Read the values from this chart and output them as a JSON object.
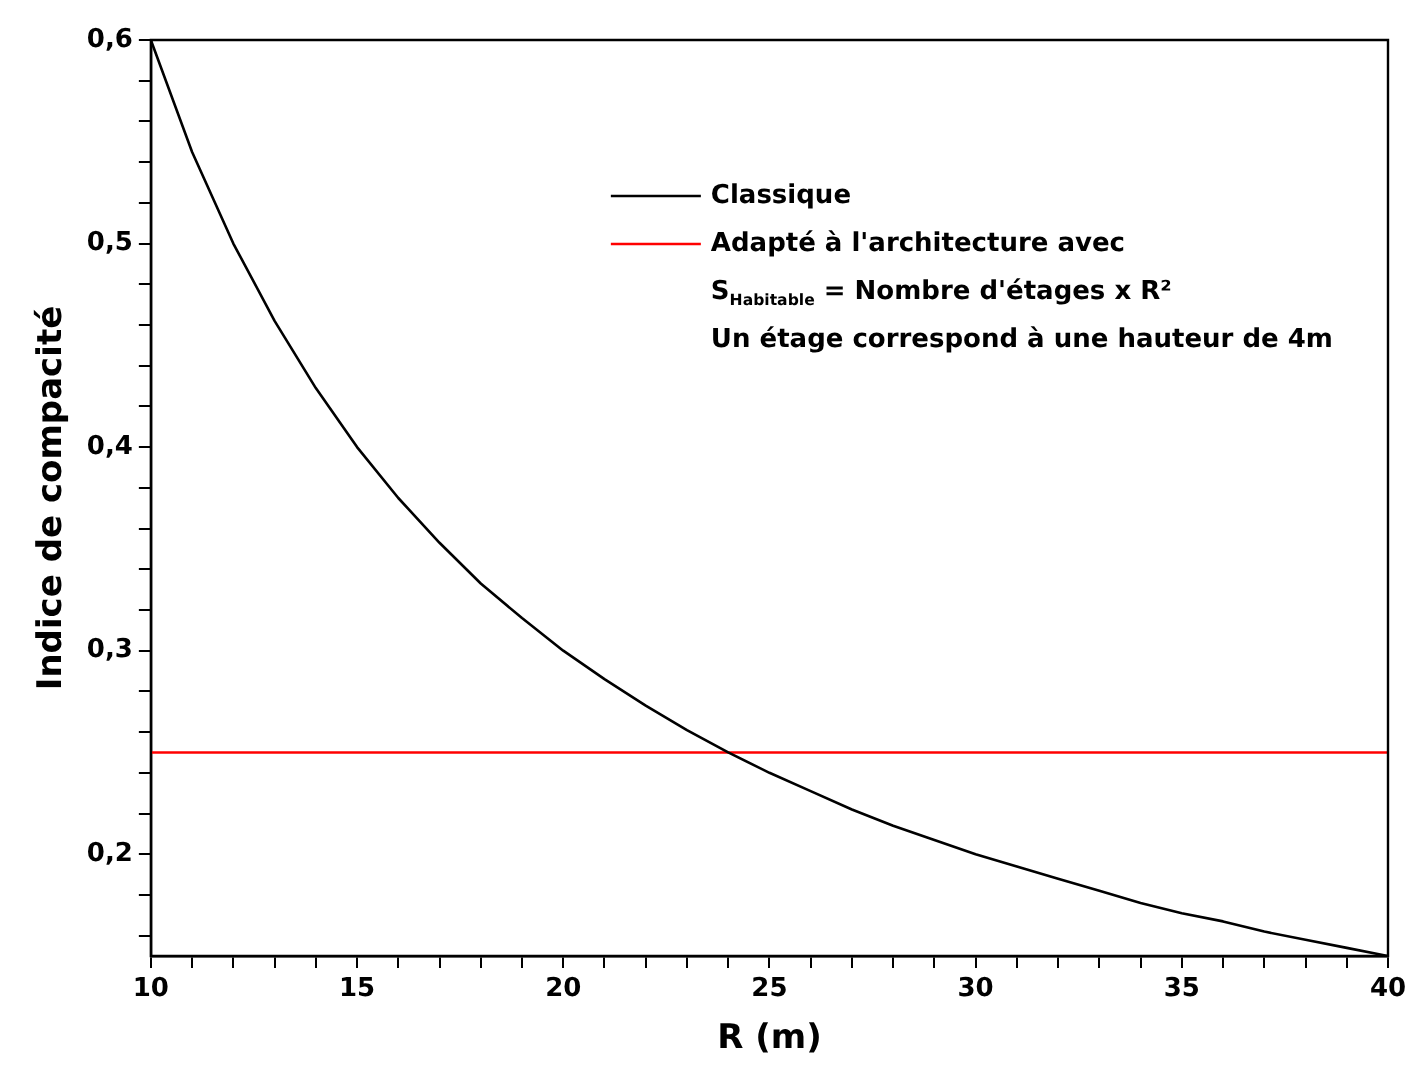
{
  "chart_data": {
    "type": "line",
    "xlabel": "R (m)",
    "ylabel": "Indice de compacité",
    "x": [
      10,
      11,
      12,
      13,
      14,
      15,
      16,
      17,
      18,
      19,
      20,
      21,
      22,
      23,
      24,
      25,
      26,
      27,
      28,
      29,
      30,
      31,
      32,
      33,
      34,
      35,
      36,
      37,
      38,
      39,
      40
    ],
    "series": [
      {
        "name": "Classique",
        "color": "#000000",
        "values": [
          0.6,
          0.545,
          0.5,
          0.462,
          0.429,
          0.4,
          0.375,
          0.353,
          0.333,
          0.316,
          0.3,
          0.286,
          0.273,
          0.261,
          0.25,
          0.24,
          0.231,
          0.222,
          0.214,
          0.207,
          0.2,
          0.194,
          0.188,
          0.182,
          0.176,
          0.171,
          0.167,
          0.162,
          0.158,
          0.154,
          0.15
        ]
      },
      {
        "name": "Adapté à l'architecture avec",
        "color": "#ff0000",
        "x": [
          10,
          40
        ],
        "values": [
          0.25,
          0.25
        ]
      }
    ],
    "annotations": [
      "S$_{Habitable}$ = Nombre d'étages x R²",
      "Un étage correspond à une hauteur de 4m"
    ],
    "xlim": [
      10,
      40
    ],
    "xticks": [
      10,
      {
        "value": 11,
        "label": null
      },
      {
        "value": 12,
        "label": null
      },
      {
        "value": 13,
        "label": null
      },
      {
        "value": 14,
        "label": null
      },
      15,
      {
        "value": 16,
        "label": null
      },
      {
        "value": 17,
        "label": null
      },
      {
        "value": 18,
        "label": null
      },
      {
        "value": 19,
        "label": null
      },
      20,
      {
        "value": 21,
        "label": null
      },
      {
        "value": 22,
        "label": null
      },
      {
        "value": 23,
        "label": null
      },
      {
        "value": 24,
        "label": null
      },
      25,
      {
        "value": 26,
        "label": null
      },
      {
        "value": 27,
        "label": null
      },
      {
        "value": 28,
        "label": null
      },
      {
        "value": 29,
        "label": null
      },
      30,
      {
        "value": 31,
        "label": null
      },
      {
        "value": 32,
        "label": null
      },
      {
        "value": 33,
        "label": null
      },
      {
        "value": 34,
        "label": null
      },
      35,
      {
        "value": 36,
        "label": null
      },
      {
        "value": 37,
        "label": null
      },
      {
        "value": 38,
        "label": null
      },
      {
        "value": 39,
        "label": null
      },
      40
    ],
    "ylim": [
      0.15,
      0.6
    ],
    "yticks": [
      {
        "value": 0.16,
        "label": null
      },
      {
        "value": 0.18,
        "label": null
      },
      {
        "value": 0.2,
        "label": "0,2"
      },
      {
        "value": 0.22,
        "label": null
      },
      {
        "value": 0.24,
        "label": null
      },
      {
        "value": 0.26,
        "label": null
      },
      {
        "value": 0.28,
        "label": null
      },
      {
        "value": 0.3,
        "label": "0,3"
      },
      {
        "value": 0.32,
        "label": null
      },
      {
        "value": 0.34,
        "label": null
      },
      {
        "value": 0.36,
        "label": null
      },
      {
        "value": 0.38,
        "label": null
      },
      {
        "value": 0.4,
        "label": "0,4"
      },
      {
        "value": 0.42,
        "label": null
      },
      {
        "value": 0.44,
        "label": null
      },
      {
        "value": 0.46,
        "label": null
      },
      {
        "value": 0.48,
        "label": null
      },
      {
        "value": 0.5,
        "label": "0,5"
      },
      {
        "value": 0.52,
        "label": null
      },
      {
        "value": 0.54,
        "label": null
      },
      {
        "value": 0.56,
        "label": null
      },
      {
        "value": 0.58,
        "label": null
      },
      {
        "value": 0.6,
        "label": "0,6"
      }
    ],
    "grid": false,
    "legend": "top right",
    "marker": "none",
    "line_style": "solid"
  }
}
